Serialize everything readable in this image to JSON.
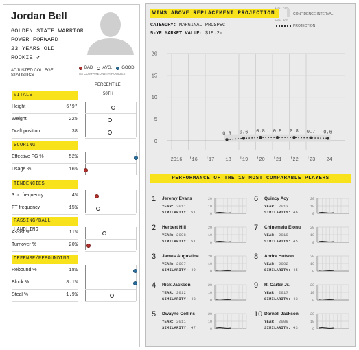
{
  "player": {
    "name": "Jordan Bell",
    "team": "GOLDEN STATE WARRIORS",
    "position": "POWER FORWARD",
    "age": "23 YEARS OLD",
    "status": "ROOKIE ✔"
  },
  "stats_header": {
    "title_line1": "ADJUSTED COLLEGE",
    "title_line2": "STATISTICS",
    "legend_bad": "BAD",
    "legend_avg": "AVG.",
    "legend_good": "GOOD",
    "legend_note": "AS COMPARED WITH ROOKIES",
    "percentile_label": "PERCENTILE",
    "percentile_50": "50TH"
  },
  "colors": {
    "accent_yellow": "#f7e21c",
    "bad": "#b5322e",
    "good": "#2a6f9e",
    "avg": "#ffffff"
  },
  "sections": [
    {
      "title": "VITALS",
      "rows": [
        {
          "label": "Height",
          "value": "6'9\"",
          "percentile": 0.55,
          "rating": "avg"
        },
        {
          "label": "Weight",
          "value": "225",
          "percentile": 0.49,
          "rating": "avg"
        },
        {
          "label": "Draft position",
          "value": "38",
          "percentile": 0.48,
          "rating": "avg"
        }
      ]
    },
    {
      "title": "SCORING",
      "rows": [
        {
          "label": "Effective FG %",
          "value": "52%",
          "percentile": 1.0,
          "rating": "good"
        },
        {
          "label": "Usage %",
          "value": "16%",
          "percentile": 0.02,
          "rating": "bad"
        }
      ]
    },
    {
      "title": "TENDENCIES",
      "rows": [
        {
          "label": "3 pt. frequency",
          "value": "4%",
          "percentile": 0.23,
          "rating": "bad"
        },
        {
          "label": "FT frequency",
          "value": "15%",
          "percentile": 0.25,
          "rating": "avg"
        }
      ]
    },
    {
      "title": "PASSING/BALL HANDLING",
      "rows": [
        {
          "label": "Assist %",
          "value": "11%",
          "percentile": 0.38,
          "rating": "avg"
        },
        {
          "label": "Turnover %",
          "value": "20%",
          "percentile": 0.07,
          "rating": "bad"
        }
      ]
    },
    {
      "title": "DEFENSE/REBOUNDING",
      "rows": [
        {
          "label": "Rebound %",
          "value": "18%",
          "percentile": 0.98,
          "rating": "good"
        },
        {
          "label": "Block %",
          "value": "8.1%",
          "percentile": 0.98,
          "rating": "good"
        },
        {
          "label": "Steal %",
          "value": "1.9%",
          "percentile": 0.53,
          "rating": "avg"
        }
      ]
    }
  ],
  "war_chart": {
    "title": "WINS ABOVE REPLACEMENT PROJECTION",
    "category_label": "CATEGORY:",
    "category_value": "MARGINAL PROSPECT",
    "market_label": "5-YR MARKET VALUE:",
    "market_value": "$19.2m",
    "legend_pct_top": "90TH PCT.",
    "legend_pct_bottom": "10TH PCT.",
    "legend_ci": "CONFIDENCE INTERVAL",
    "legend_projection": "PROJECTION"
  },
  "chart_data": {
    "type": "line",
    "x": [
      "2016",
      "'16",
      "'17",
      "'18",
      "'19",
      "'20",
      "'21",
      "'22",
      "'23",
      "'24"
    ],
    "series": [
      {
        "name": "PROJECTION",
        "values": [
          null,
          null,
          null,
          0.3,
          0.6,
          0.8,
          0.8,
          0.8,
          0.7,
          0.6
        ]
      }
    ],
    "ylim": [
      -2,
      20
    ],
    "yticks": [
      0,
      5,
      10,
      15,
      20
    ],
    "data_labels": [
      "0.3",
      "0.6",
      "0.8",
      "0.8",
      "0.8",
      "0.7",
      "0.6"
    ],
    "grid": true
  },
  "comparables": {
    "title": "PERFORMANCE OF THE 10 MOST COMPARABLE PLAYERS",
    "year_label": "YEAR:",
    "similarity_label": "SIMILARITY:",
    "mini_yticks": [
      "20",
      "10",
      "0"
    ],
    "players": [
      {
        "rank": "1",
        "name": "Jeremy Evans",
        "year": "2011",
        "similarity": "51"
      },
      {
        "rank": "2",
        "name": "Herbert Hill",
        "year": "2008",
        "similarity": "51"
      },
      {
        "rank": "3",
        "name": "James Augustine",
        "year": "2007",
        "similarity": "49"
      },
      {
        "rank": "4",
        "name": "Rick Jackson",
        "year": "2012",
        "similarity": "48"
      },
      {
        "rank": "5",
        "name": "Dwayne Collins",
        "year": "2011",
        "similarity": "47"
      },
      {
        "rank": "6",
        "name": "Quincy Acy",
        "year": "2013",
        "similarity": "46"
      },
      {
        "rank": "7",
        "name": "Chinemelu Elonu",
        "year": "2010",
        "similarity": "45"
      },
      {
        "rank": "8",
        "name": "Andre Hutson",
        "year": "2002",
        "similarity": "45"
      },
      {
        "rank": "9",
        "name": "R. Carter Jr.",
        "year": "2017",
        "similarity": "43"
      },
      {
        "rank": "10",
        "name": "Darnell Jackson",
        "year": "2009",
        "similarity": "43"
      }
    ]
  }
}
